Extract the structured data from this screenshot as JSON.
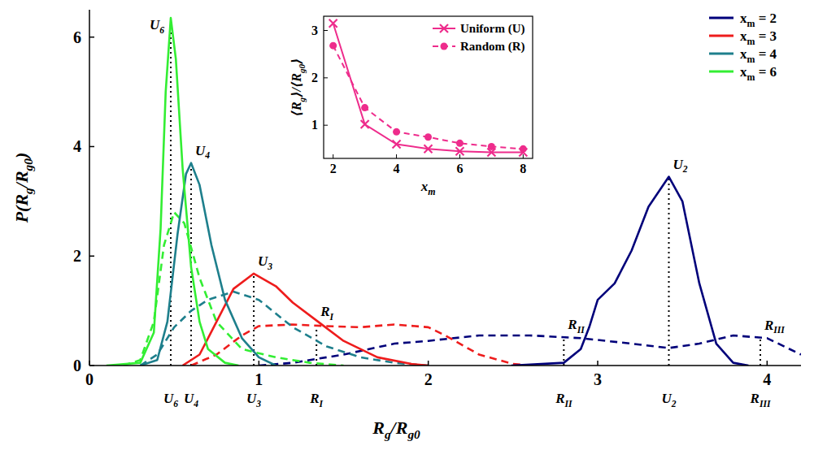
{
  "chart_data": [
    {
      "type": "line",
      "x_label": "Rg/Rg0",
      "y_label": "P(Rg/Rg0)",
      "xlim": [
        0,
        4.2
      ],
      "ylim": [
        0,
        6.5
      ],
      "xticks": [
        0,
        1,
        2,
        3,
        4
      ],
      "yticks": [
        0,
        2,
        4,
        6
      ],
      "legend": "top-right",
      "series": [
        {
          "name": "xm = 2",
          "color": "#00007a",
          "line_style": "solid",
          "x": [
            2.49,
            2.8,
            2.9,
            2.95,
            3.0,
            3.1,
            3.2,
            3.3,
            3.42,
            3.5,
            3.6,
            3.7,
            3.8,
            3.89
          ],
          "values": [
            0,
            0.05,
            0.3,
            0.7,
            1.2,
            1.5,
            2.1,
            2.9,
            3.45,
            3.0,
            1.5,
            0.4,
            0.05,
            0
          ]
        },
        {
          "name": "xm = 3",
          "color": "#ee1c1c",
          "line_style": "solid",
          "x": [
            0.55,
            0.65,
            0.75,
            0.85,
            0.97,
            1.1,
            1.2,
            1.35,
            1.5,
            1.7,
            1.9,
            2.0
          ],
          "values": [
            0,
            0.2,
            0.8,
            1.4,
            1.68,
            1.45,
            1.15,
            0.8,
            0.45,
            0.15,
            0.03,
            0
          ]
        },
        {
          "name": "xm = 4",
          "color": "#1e7f8c",
          "line_style": "solid",
          "x": [
            0.3,
            0.4,
            0.46,
            0.52,
            0.57,
            0.6,
            0.65,
            0.72,
            0.8,
            0.9,
            1.0,
            1.1
          ],
          "values": [
            0,
            0.1,
            0.8,
            2.4,
            3.5,
            3.7,
            3.3,
            2.2,
            1.2,
            0.5,
            0.15,
            0
          ]
        },
        {
          "name": "xm = 6",
          "color": "#33ee33",
          "line_style": "solid",
          "x": [
            0.1,
            0.3,
            0.38,
            0.42,
            0.45,
            0.48,
            0.51,
            0.55,
            0.6,
            0.65,
            0.7,
            0.8,
            0.88
          ],
          "values": [
            0,
            0.05,
            0.6,
            2.5,
            5.0,
            6.35,
            5.6,
            3.6,
            1.8,
            0.8,
            0.3,
            0.05,
            0
          ]
        },
        {
          "color": "#00007a",
          "line_style": "dashed",
          "x": [
            1.0,
            1.2,
            1.5,
            1.8,
            2.0,
            2.3,
            2.6,
            2.9,
            3.2,
            3.42,
            3.6,
            3.8,
            4.0,
            4.2
          ],
          "values": [
            0,
            0.05,
            0.2,
            0.4,
            0.45,
            0.55,
            0.55,
            0.5,
            0.4,
            0.32,
            0.4,
            0.55,
            0.5,
            0.2
          ]
        },
        {
          "color": "#ee1c1c",
          "line_style": "dashed",
          "x": [
            0.6,
            0.75,
            0.9,
            1.0,
            1.2,
            1.4,
            1.6,
            1.8,
            2.0,
            2.1,
            2.3,
            2.5,
            2.6
          ],
          "values": [
            0,
            0.2,
            0.55,
            0.72,
            0.75,
            0.72,
            0.7,
            0.75,
            0.7,
            0.55,
            0.2,
            0.03,
            0
          ]
        },
        {
          "color": "#1e7f8c",
          "line_style": "dashed",
          "x": [
            0.3,
            0.4,
            0.5,
            0.6,
            0.7,
            0.85,
            1.0,
            1.2,
            1.4,
            1.6,
            1.8,
            2.0
          ],
          "values": [
            0,
            0.2,
            0.7,
            1.0,
            1.2,
            1.35,
            1.2,
            0.7,
            0.35,
            0.15,
            0.05,
            0
          ]
        },
        {
          "color": "#33ee33",
          "line_style": "dashed",
          "x": [
            0.2,
            0.3,
            0.38,
            0.44,
            0.5,
            0.56,
            0.65,
            0.75,
            0.9,
            1.1,
            1.3,
            1.5
          ],
          "values": [
            0,
            0.1,
            0.8,
            2.2,
            2.8,
            2.6,
            1.6,
            0.8,
            0.3,
            0.15,
            0.05,
            0
          ]
        }
      ],
      "reference_lines": [
        {
          "label": "U6",
          "x": 0.48,
          "y": 6.35
        },
        {
          "label": "U4",
          "x": 0.6,
          "y": 3.7
        },
        {
          "label": "U3",
          "x": 0.97,
          "y": 1.68
        },
        {
          "label": "RI",
          "x": 1.34,
          "y": 0.75
        },
        {
          "label": "RII",
          "x": 2.8,
          "y": 0.52
        },
        {
          "label": "U2",
          "x": 3.42,
          "y": 3.45
        },
        {
          "label": "RIII",
          "x": 3.96,
          "y": 0.51
        }
      ]
    },
    {
      "type": "line",
      "x_label": "xm",
      "y_label": "⟨Rg⟩/⟨Rg0⟩",
      "xlim": [
        1.7,
        8.3
      ],
      "ylim": [
        0.3,
        3.3
      ],
      "xticks": [
        2,
        4,
        6,
        8
      ],
      "yticks": [
        1,
        2,
        3
      ],
      "legend": "top-right",
      "series": [
        {
          "name": "Uniform (U)",
          "color": "#ee2c8c",
          "marker": "x",
          "line_style": "solid",
          "x": [
            2,
            3,
            4,
            5,
            6,
            7,
            8
          ],
          "values": [
            3.15,
            1.02,
            0.6,
            0.5,
            0.45,
            0.43,
            0.43
          ]
        },
        {
          "name": "Random (R)",
          "color": "#ee2c8c",
          "marker": "circle",
          "line_style": "dashed",
          "x": [
            2,
            3,
            4,
            5,
            6,
            7,
            8
          ],
          "values": [
            2.68,
            1.37,
            0.86,
            0.75,
            0.62,
            0.55,
            0.5
          ]
        }
      ]
    }
  ]
}
